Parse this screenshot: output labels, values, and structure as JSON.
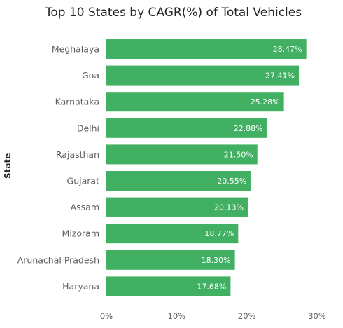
{
  "chart_data": {
    "type": "bar",
    "orientation": "horizontal",
    "title": "Top 10 States by CAGR(%) of Total Vehicles",
    "ylabel": "State",
    "xlabel": "",
    "categories": [
      "Meghalaya",
      "Goa",
      "Karnataka",
      "Delhi",
      "Rajasthan",
      "Gujarat",
      "Assam",
      "Mizoram",
      "Arunachal Pradesh",
      "Haryana"
    ],
    "values": [
      28.47,
      27.41,
      25.28,
      22.88,
      21.5,
      20.55,
      20.13,
      18.77,
      18.3,
      17.68
    ],
    "value_labels": [
      "28.47%",
      "27.41%",
      "25.28%",
      "22.88%",
      "21.50%",
      "20.55%",
      "20.13%",
      "18.77%",
      "18.30%",
      "17.68%"
    ],
    "xlim": [
      0,
      30
    ],
    "xticks": [
      0,
      10,
      20,
      30
    ],
    "xtick_labels": [
      "0%",
      "10%",
      "20%",
      "30%"
    ],
    "bar_color": "#41b062",
    "grid": false,
    "legend": "none"
  }
}
